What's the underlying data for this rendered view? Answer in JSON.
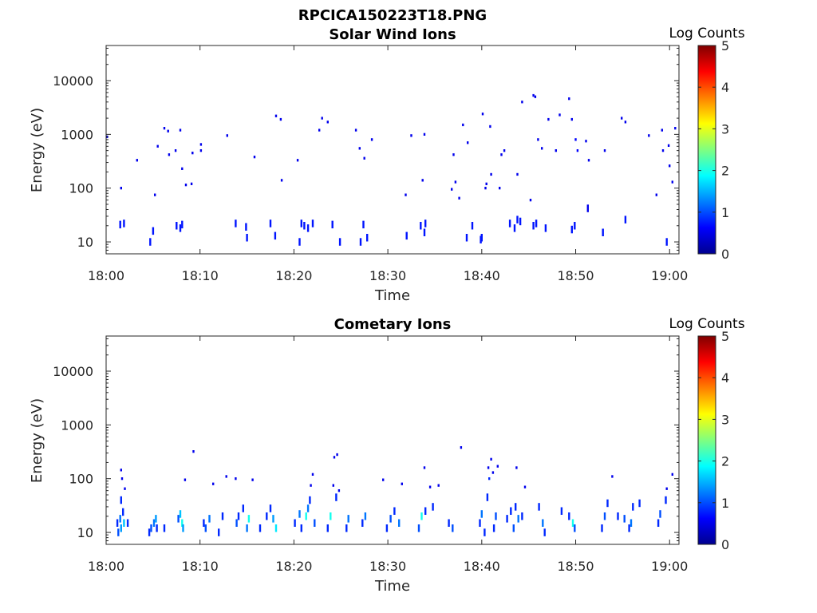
{
  "figure_title": "RPCICA150223T18.PNG",
  "chart_data": [
    {
      "type": "heatmap",
      "title": "Solar Wind Ions",
      "xlabel": "Time",
      "ylabel": "Energy (eV)",
      "yscale": "log",
      "ylim": [
        6,
        45000
      ],
      "xlim": [
        "18:00",
        "19:01"
      ],
      "xticks": [
        "18:00",
        "18:10",
        "18:20",
        "18:30",
        "18:40",
        "18:50",
        "19:00"
      ],
      "yticks": [
        "10",
        "100",
        "1000",
        "10000"
      ],
      "colorbar": {
        "label": "Log Counts",
        "range": [
          0,
          5
        ],
        "ticks": [
          "0",
          "1",
          "2",
          "3",
          "4",
          "5"
        ],
        "colormap": "jet"
      },
      "cells_note": "[minutes after 18:00, energy eV, log counts]",
      "cells": [
        [
          0.1,
          900,
          0.4
        ],
        [
          1.6,
          100,
          0.3
        ],
        [
          3.3,
          330,
          0.3
        ],
        [
          5.2,
          75,
          0.3
        ],
        [
          5.5,
          600,
          0.3
        ],
        [
          6.2,
          1300,
          0.3
        ],
        [
          6.6,
          1150,
          0.3
        ],
        [
          6.7,
          420,
          0.3
        ],
        [
          7.4,
          500,
          0.3
        ],
        [
          7.9,
          1200,
          0.3
        ],
        [
          8.1,
          230,
          0.3
        ],
        [
          8.5,
          115,
          0.3
        ],
        [
          9.1,
          120,
          0.3
        ],
        [
          9.2,
          450,
          0.3
        ],
        [
          10.1,
          500,
          0.3
        ],
        [
          10.1,
          650,
          0.3
        ],
        [
          12.9,
          950,
          0.3
        ],
        [
          15.8,
          380,
          0.3
        ],
        [
          18.1,
          2200,
          0.3
        ],
        [
          18.6,
          1900,
          0.3
        ],
        [
          18.7,
          140,
          0.3
        ],
        [
          20.4,
          330,
          0.3
        ],
        [
          22.7,
          1200,
          0.3
        ],
        [
          23.0,
          2000,
          0.3
        ],
        [
          23.6,
          1700,
          0.3
        ],
        [
          26.6,
          1200,
          0.3
        ],
        [
          27.0,
          550,
          0.3
        ],
        [
          27.5,
          360,
          0.3
        ],
        [
          28.3,
          800,
          0.3
        ],
        [
          31.9,
          75,
          0.3
        ],
        [
          32.5,
          950,
          0.3
        ],
        [
          33.7,
          140,
          0.3
        ],
        [
          33.9,
          1000,
          0.3
        ],
        [
          36.8,
          95,
          0.3
        ],
        [
          37.0,
          420,
          0.3
        ],
        [
          37.2,
          130,
          0.3
        ],
        [
          37.6,
          65,
          0.3
        ],
        [
          38.0,
          1500,
          0.3
        ],
        [
          38.5,
          700,
          0.3
        ],
        [
          40.1,
          2400,
          0.3
        ],
        [
          40.4,
          100,
          0.3
        ],
        [
          40.5,
          120,
          0.3
        ],
        [
          40.9,
          1400,
          0.3
        ],
        [
          41.0,
          180,
          0.3
        ],
        [
          41.9,
          100,
          0.3
        ],
        [
          42.1,
          420,
          0.3
        ],
        [
          42.4,
          500,
          0.3
        ],
        [
          43.8,
          180,
          0.3
        ],
        [
          44.3,
          4000,
          0.3
        ],
        [
          45.2,
          60,
          0.3
        ],
        [
          45.5,
          5300,
          0.3
        ],
        [
          45.7,
          5000,
          0.3
        ],
        [
          46.0,
          800,
          0.3
        ],
        [
          46.4,
          550,
          0.3
        ],
        [
          47.1,
          1900,
          0.3
        ],
        [
          47.9,
          500,
          0.3
        ],
        [
          48.3,
          2300,
          0.3
        ],
        [
          49.3,
          4600,
          0.3
        ],
        [
          49.6,
          1900,
          0.3
        ],
        [
          50.0,
          800,
          0.4
        ],
        [
          50.2,
          500,
          0.4
        ],
        [
          51.1,
          750,
          0.3
        ],
        [
          51.3,
          42,
          0.3
        ],
        [
          51.4,
          330,
          0.3
        ],
        [
          53.1,
          500,
          0.3
        ],
        [
          54.9,
          2000,
          0.3
        ],
        [
          55.3,
          1700,
          0.3
        ],
        [
          57.8,
          950,
          0.3
        ],
        [
          58.6,
          75,
          0.3
        ],
        [
          59.2,
          1200,
          0.3
        ],
        [
          59.3,
          500,
          0.3
        ],
        [
          59.9,
          620,
          0.3
        ],
        [
          60.0,
          260,
          0.3
        ],
        [
          60.3,
          130,
          0.3
        ],
        [
          60.6,
          1300,
          0.3
        ],
        [
          1.5,
          21,
          0.5
        ],
        [
          1.9,
          22,
          0.5
        ],
        [
          4.7,
          10,
          0.5
        ],
        [
          5.0,
          16,
          0.5
        ],
        [
          7.5,
          20,
          0.5
        ],
        [
          7.9,
          18,
          0.5
        ],
        [
          8.1,
          21,
          0.5
        ],
        [
          13.8,
          22,
          0.5
        ],
        [
          14.9,
          19,
          0.5
        ],
        [
          15.0,
          12,
          0.5
        ],
        [
          17.5,
          22,
          0.5
        ],
        [
          18.0,
          13,
          0.5
        ],
        [
          20.6,
          10,
          0.5
        ],
        [
          20.8,
          22,
          0.5
        ],
        [
          21.1,
          20,
          0.5
        ],
        [
          21.5,
          18,
          0.5
        ],
        [
          22.0,
          22,
          0.5
        ],
        [
          24.1,
          21,
          0.5
        ],
        [
          24.9,
          10,
          0.5
        ],
        [
          27.1,
          10,
          0.5
        ],
        [
          27.4,
          21,
          0.5
        ],
        [
          27.8,
          12,
          0.5
        ],
        [
          32.0,
          13,
          0.5
        ],
        [
          33.5,
          20,
          0.5
        ],
        [
          33.9,
          15,
          0.5
        ],
        [
          34.0,
          22,
          0.5
        ],
        [
          38.4,
          12,
          0.5
        ],
        [
          39.0,
          20,
          0.5
        ],
        [
          39.9,
          11,
          0.5
        ],
        [
          40.0,
          12,
          0.5
        ],
        [
          43.0,
          22,
          0.5
        ],
        [
          43.5,
          18,
          0.5
        ],
        [
          43.8,
          26,
          0.5
        ],
        [
          44.1,
          24,
          0.5
        ],
        [
          45.5,
          20,
          0.5
        ],
        [
          45.8,
          22,
          0.5
        ],
        [
          46.8,
          18,
          0.5
        ],
        [
          49.6,
          17,
          0.5
        ],
        [
          49.9,
          20,
          0.5
        ],
        [
          52.9,
          15,
          0.5
        ],
        [
          55.3,
          26,
          0.5
        ],
        [
          59.7,
          10,
          0.5
        ]
      ]
    },
    {
      "type": "heatmap",
      "title": "Cometary Ions",
      "xlabel": "Time",
      "ylabel": "Energy (eV)",
      "yscale": "log",
      "ylim": [
        6,
        45000
      ],
      "xlim": [
        "18:00",
        "19:01"
      ],
      "xticks": [
        "18:00",
        "18:10",
        "18:20",
        "18:30",
        "18:40",
        "18:50",
        "19:00"
      ],
      "yticks": [
        "10",
        "100",
        "1000",
        "10000"
      ],
      "colorbar": {
        "label": "Log Counts",
        "range": [
          0,
          5
        ],
        "ticks": [
          "0",
          "1",
          "2",
          "3",
          "4",
          "5"
        ],
        "colormap": "jet"
      },
      "cells_note": "[minutes after 18:00, energy eV, log counts]",
      "cells": [
        [
          1.2,
          15,
          0.6
        ],
        [
          1.3,
          10,
          0.8
        ],
        [
          1.5,
          18,
          1.0
        ],
        [
          1.6,
          12,
          1.2
        ],
        [
          1.6,
          40,
          0.6
        ],
        [
          1.6,
          145,
          0.3
        ],
        [
          1.7,
          100,
          0.3
        ],
        [
          1.8,
          24,
          0.6
        ],
        [
          1.9,
          15,
          1.4
        ],
        [
          2.0,
          65,
          0.3
        ],
        [
          2.3,
          15,
          0.6
        ],
        [
          4.6,
          10,
          0.6
        ],
        [
          4.8,
          12,
          0.8
        ],
        [
          5.1,
          15,
          1.0
        ],
        [
          5.3,
          18,
          1.2
        ],
        [
          5.4,
          12,
          0.6
        ],
        [
          6.2,
          12,
          0.6
        ],
        [
          7.7,
          18,
          0.8
        ],
        [
          7.9,
          22,
          1.4
        ],
        [
          8.1,
          15,
          1.8
        ],
        [
          8.2,
          12,
          1.2
        ],
        [
          8.4,
          95,
          0.3
        ],
        [
          9.3,
          320,
          0.3
        ],
        [
          10.4,
          15,
          0.6
        ],
        [
          10.6,
          12,
          0.8
        ],
        [
          11.0,
          18,
          1.0
        ],
        [
          11.4,
          80,
          0.3
        ],
        [
          12.0,
          10,
          0.6
        ],
        [
          12.4,
          20,
          0.6
        ],
        [
          12.8,
          110,
          0.3
        ],
        [
          13.8,
          100,
          0.3
        ],
        [
          13.9,
          15,
          0.8
        ],
        [
          14.1,
          20,
          0.6
        ],
        [
          14.6,
          28,
          0.6
        ],
        [
          15.0,
          12,
          1.0
        ],
        [
          15.2,
          18,
          1.8
        ],
        [
          15.6,
          95,
          0.3
        ],
        [
          16.4,
          12,
          0.6
        ],
        [
          17.1,
          20,
          0.6
        ],
        [
          17.5,
          28,
          0.6
        ],
        [
          17.8,
          18,
          1.2
        ],
        [
          18.1,
          12,
          1.6
        ],
        [
          20.1,
          15,
          0.6
        ],
        [
          20.6,
          22,
          1.0
        ],
        [
          20.8,
          12,
          0.6
        ],
        [
          21.3,
          20,
          1.8
        ],
        [
          21.5,
          28,
          1.0
        ],
        [
          21.7,
          40,
          0.6
        ],
        [
          21.8,
          75,
          0.3
        ],
        [
          22.0,
          120,
          0.3
        ],
        [
          22.2,
          15,
          0.8
        ],
        [
          23.6,
          12,
          0.6
        ],
        [
          23.9,
          20,
          1.8
        ],
        [
          24.2,
          75,
          0.3
        ],
        [
          24.3,
          250,
          0.3
        ],
        [
          24.5,
          45,
          0.6
        ],
        [
          24.6,
          280,
          0.3
        ],
        [
          24.8,
          60,
          0.3
        ],
        [
          25.6,
          12,
          0.6
        ],
        [
          25.8,
          18,
          1.0
        ],
        [
          27.3,
          15,
          0.6
        ],
        [
          27.6,
          20,
          1.0
        ],
        [
          29.5,
          95,
          0.3
        ],
        [
          29.9,
          12,
          0.6
        ],
        [
          30.3,
          18,
          0.8
        ],
        [
          30.7,
          25,
          0.6
        ],
        [
          31.2,
          15,
          1.0
        ],
        [
          31.5,
          80,
          0.3
        ],
        [
          33.3,
          12,
          0.8
        ],
        [
          33.6,
          20,
          1.8
        ],
        [
          33.9,
          160,
          0.3
        ],
        [
          34.0,
          25,
          0.6
        ],
        [
          34.5,
          70,
          0.3
        ],
        [
          34.8,
          30,
          0.6
        ],
        [
          35.4,
          75,
          0.3
        ],
        [
          36.5,
          15,
          0.6
        ],
        [
          36.9,
          12,
          0.8
        ],
        [
          37.8,
          380,
          0.3
        ],
        [
          39.8,
          15,
          0.6
        ],
        [
          40.0,
          22,
          1.0
        ],
        [
          40.3,
          10,
          0.6
        ],
        [
          40.6,
          45,
          0.6
        ],
        [
          40.7,
          160,
          0.3
        ],
        [
          40.8,
          100,
          0.6
        ],
        [
          41.0,
          230,
          0.3
        ],
        [
          41.2,
          130,
          0.3
        ],
        [
          41.3,
          12,
          0.6
        ],
        [
          41.5,
          20,
          0.8
        ],
        [
          41.7,
          170,
          0.3
        ],
        [
          42.7,
          18,
          0.6
        ],
        [
          43.1,
          25,
          0.6
        ],
        [
          43.4,
          12,
          0.8
        ],
        [
          43.6,
          30,
          0.6
        ],
        [
          43.7,
          160,
          0.3
        ],
        [
          43.9,
          18,
          1.0
        ],
        [
          44.3,
          20,
          0.6
        ],
        [
          44.6,
          70,
          0.3
        ],
        [
          46.1,
          30,
          0.6
        ],
        [
          46.5,
          15,
          1.0
        ],
        [
          46.7,
          10,
          0.6
        ],
        [
          48.5,
          25,
          0.6
        ],
        [
          49.3,
          20,
          0.6
        ],
        [
          49.7,
          15,
          1.8
        ],
        [
          49.9,
          12,
          0.8
        ],
        [
          52.8,
          12,
          0.6
        ],
        [
          53.1,
          20,
          0.8
        ],
        [
          53.4,
          35,
          0.6
        ],
        [
          53.9,
          110,
          0.3
        ],
        [
          54.5,
          20,
          0.6
        ],
        [
          55.2,
          18,
          0.8
        ],
        [
          55.7,
          12,
          0.6
        ],
        [
          55.9,
          15,
          1.0
        ],
        [
          56.1,
          30,
          0.6
        ],
        [
          56.8,
          35,
          0.6
        ],
        [
          58.8,
          15,
          0.6
        ],
        [
          59.0,
          22,
          0.8
        ],
        [
          59.6,
          40,
          0.6
        ],
        [
          59.7,
          65,
          0.3
        ],
        [
          60.3,
          120,
          0.3
        ]
      ]
    }
  ]
}
